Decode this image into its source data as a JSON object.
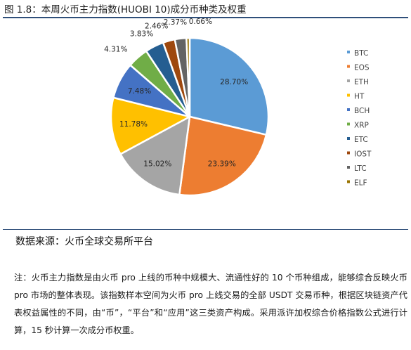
{
  "figure": {
    "title": "图 1.8：本周火币主力指数(HUOBI 10)成分币种类及权重"
  },
  "chart_data": {
    "type": "pie",
    "title": "",
    "unit": "%",
    "legend_position": "right",
    "slices": [
      {
        "label": "BTC",
        "value": 28.7,
        "display": "28.70%",
        "color": "#5b9bd5"
      },
      {
        "label": "EOS",
        "value": 23.39,
        "display": "23.39%",
        "color": "#ed7d31"
      },
      {
        "label": "ETH",
        "value": 15.02,
        "display": "15.02%",
        "color": "#a5a5a5"
      },
      {
        "label": "HT",
        "value": 11.78,
        "display": "11.78%",
        "color": "#ffc000"
      },
      {
        "label": "BCH",
        "value": 7.48,
        "display": "7.48%",
        "color": "#4472c4"
      },
      {
        "label": "XRP",
        "value": 4.31,
        "display": "4.31%",
        "color": "#70ad47"
      },
      {
        "label": "ETC",
        "value": 3.83,
        "display": "3.83%",
        "color": "#255e91"
      },
      {
        "label": "IOST",
        "value": 2.46,
        "display": "2.46%",
        "color": "#9e480e"
      },
      {
        "label": "LTC",
        "value": 2.37,
        "display": "2.37%",
        "color": "#636363"
      },
      {
        "label": "ELF",
        "value": 0.66,
        "display": "0.66%",
        "color": "#997300"
      }
    ]
  },
  "source": {
    "text": "数据来源：火币全球交易所平台"
  },
  "note": {
    "text": "注：火币主力指数是由火币 pro 上线的币种中规模大、流通性好的 10 个币种组成，能够综合反映火币 pro 市场的整体表现。该指数样本空间为火币 pro 上线交易的全部 USDT 交易币种，根据区块链资产代表权益属性的不同，由“币”，“平台”和“应用”这三类资产构成。采用派许加权综合价格指数公式进行计算，15 秒计算一次成分币权重。"
  }
}
